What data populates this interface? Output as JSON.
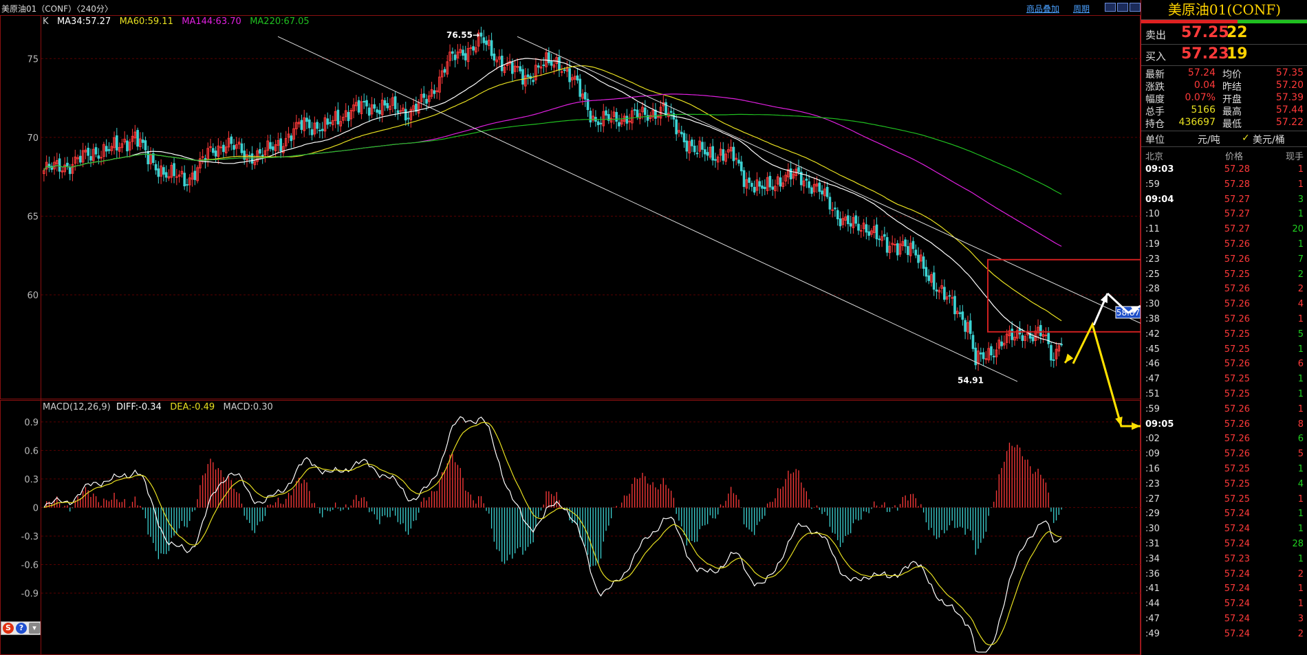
{
  "header": {
    "title": "美原油01（CONF）〈240分〉",
    "link_overlay": "商品叠加",
    "link_period": "周期"
  },
  "legend": {
    "k_label": "K",
    "ma34": "MA34:57.27",
    "ma60": "MA60:59.11",
    "ma144": "MA144:63.70",
    "ma220": "MA220:67.05"
  },
  "macd_legend": {
    "label": "MACD(12,26,9)",
    "diff": "DIFF:-0.34",
    "dea": "DEA:-0.49",
    "macd": "MACD:0.30"
  },
  "colors": {
    "up": "#ff3a3a",
    "down": "#3cd2d2",
    "ma34": "#ffffff",
    "ma60": "#e8e020",
    "ma144": "#e020e0",
    "ma220": "#20c020",
    "grid": "#5a0000",
    "diff": "#ffffff",
    "dea": "#e8e020"
  },
  "chart_data": [
    {
      "type": "candlestick",
      "title": "美原油01（CONF）〈240分〉",
      "y_ticks": [
        "75",
        "70",
        "65",
        "60"
      ],
      "ylim": [
        53.5,
        77.5
      ],
      "annotations": [
        {
          "text": "76.55",
          "value": 76.55
        },
        {
          "text": "54.91",
          "value": 54.91
        },
        {
          "text": "58.87",
          "value": 58.87
        }
      ],
      "current_box": "58.87",
      "series": [
        {
          "name": "MA34",
          "last": 57.27
        },
        {
          "name": "MA60",
          "last": 59.11
        },
        {
          "name": "MA144",
          "last": 63.7
        },
        {
          "name": "MA220",
          "last": 67.05
        }
      ],
      "anchors_close": [
        [
          0,
          67.9
        ],
        [
          10,
          68.3
        ],
        [
          20,
          69.1
        ],
        [
          28,
          69.3
        ],
        [
          35,
          70.2
        ],
        [
          40,
          68.6
        ],
        [
          48,
          67.6
        ],
        [
          55,
          67.3
        ],
        [
          63,
          68.9
        ],
        [
          70,
          69.7
        ],
        [
          78,
          68.8
        ],
        [
          85,
          69.0
        ],
        [
          92,
          69.8
        ],
        [
          100,
          70.9
        ],
        [
          108,
          70.6
        ],
        [
          118,
          71.8
        ],
        [
          130,
          72.0
        ],
        [
          140,
          71.6
        ],
        [
          148,
          72.5
        ],
        [
          155,
          74.8
        ],
        [
          162,
          75.5
        ],
        [
          168,
          76.2
        ],
        [
          172,
          75.4
        ],
        [
          178,
          74.5
        ],
        [
          185,
          73.8
        ],
        [
          192,
          74.6
        ],
        [
          198,
          74.8
        ],
        [
          205,
          73.2
        ],
        [
          212,
          71.0
        ],
        [
          220,
          71.2
        ],
        [
          230,
          71.4
        ],
        [
          238,
          71.8
        ],
        [
          245,
          70.2
        ],
        [
          250,
          69.1
        ],
        [
          257,
          69.0
        ],
        [
          265,
          68.8
        ],
        [
          270,
          67.3
        ],
        [
          275,
          66.6
        ],
        [
          282,
          67.3
        ],
        [
          290,
          67.6
        ],
        [
          298,
          66.6
        ],
        [
          305,
          65.1
        ],
        [
          312,
          64.2
        ],
        [
          318,
          64.3
        ],
        [
          324,
          62.9
        ],
        [
          330,
          63.4
        ],
        [
          335,
          62.4
        ],
        [
          340,
          61.3
        ],
        [
          345,
          60.0
        ],
        [
          350,
          59.3
        ],
        [
          355,
          58.1
        ],
        [
          358,
          55.7
        ],
        [
          365,
          56.6
        ],
        [
          372,
          57.3
        ],
        [
          376,
          57.7
        ],
        [
          380,
          57.3
        ],
        [
          384,
          57.5
        ],
        [
          388,
          56.1
        ],
        [
          391,
          57.3
        ]
      ]
    },
    {
      "type": "macd",
      "title": "MACD(12,26,9)",
      "y_ticks": [
        "0.9",
        "0.6",
        "0.3",
        "0",
        "-0.3",
        "-0.6",
        "-0.9"
      ],
      "ylim": [
        -1.55,
        1.0
      ],
      "series": [
        {
          "name": "DIFF",
          "last": -0.34
        },
        {
          "name": "DEA",
          "last": -0.49
        },
        {
          "name": "MACD",
          "last": 0.3
        }
      ]
    }
  ],
  "panel": {
    "title": "美原油01(CONF)",
    "sell_label": "卖出",
    "sell_price": "57.25",
    "sell_vol": "22",
    "buy_label": "买入",
    "buy_price": "57.23",
    "buy_vol": "19",
    "stats": [
      [
        "最新",
        "57.24",
        "均价",
        "57.35"
      ],
      [
        "涨跌",
        "0.04",
        "昨结",
        "57.20"
      ],
      [
        "幅度",
        "0.07%",
        "开盘",
        "57.39"
      ],
      [
        "总手",
        "5166",
        "最高",
        "57.44"
      ],
      [
        "持仓",
        "436697",
        "最低",
        "57.22"
      ]
    ],
    "unit_label": "单位",
    "unit_value": "元/吨",
    "unit_check": "✓",
    "unit_alt": "美元/桶",
    "col_time": "北京",
    "col_price": "价格",
    "col_vol": "现手",
    "ticks": [
      {
        "t": "09:03",
        "p": "57.28",
        "v": "1",
        "b": true,
        "c": "r"
      },
      {
        "t": ":59",
        "p": "57.28",
        "v": "1",
        "c": "r"
      },
      {
        "t": "09:04",
        "p": "57.27",
        "v": "3",
        "b": true,
        "c": "g"
      },
      {
        "t": ":10",
        "p": "57.27",
        "v": "1",
        "c": "g"
      },
      {
        "t": ":11",
        "p": "57.27",
        "v": "20",
        "c": "g"
      },
      {
        "t": ":19",
        "p": "57.26",
        "v": "1",
        "c": "g"
      },
      {
        "t": ":23",
        "p": "57.26",
        "v": "7",
        "c": "g"
      },
      {
        "t": ":25",
        "p": "57.25",
        "v": "2",
        "c": "g"
      },
      {
        "t": ":28",
        "p": "57.26",
        "v": "2",
        "c": "r"
      },
      {
        "t": ":30",
        "p": "57.26",
        "v": "4",
        "c": "r"
      },
      {
        "t": ":38",
        "p": "57.26",
        "v": "1",
        "c": "r"
      },
      {
        "t": ":42",
        "p": "57.25",
        "v": "5",
        "c": "g"
      },
      {
        "t": ":45",
        "p": "57.25",
        "v": "1",
        "c": "g"
      },
      {
        "t": ":46",
        "p": "57.26",
        "v": "6",
        "c": "r"
      },
      {
        "t": ":47",
        "p": "57.25",
        "v": "1",
        "c": "g"
      },
      {
        "t": ":51",
        "p": "57.25",
        "v": "1",
        "c": "g"
      },
      {
        "t": ":59",
        "p": "57.26",
        "v": "1",
        "c": "r"
      },
      {
        "t": "09:05",
        "p": "57.26",
        "v": "8",
        "b": true,
        "c": "r"
      },
      {
        "t": ":02",
        "p": "57.26",
        "v": "6",
        "c": "g"
      },
      {
        "t": ":09",
        "p": "57.26",
        "v": "5",
        "c": "r"
      },
      {
        "t": ":16",
        "p": "57.25",
        "v": "1",
        "c": "g"
      },
      {
        "t": ":23",
        "p": "57.25",
        "v": "4",
        "c": "g"
      },
      {
        "t": ":27",
        "p": "57.25",
        "v": "1",
        "c": "r"
      },
      {
        "t": ":29",
        "p": "57.24",
        "v": "1",
        "c": "g"
      },
      {
        "t": ":30",
        "p": "57.24",
        "v": "1",
        "c": "g"
      },
      {
        "t": ":31",
        "p": "57.24",
        "v": "28",
        "c": "g"
      },
      {
        "t": ":34",
        "p": "57.23",
        "v": "1",
        "c": "g"
      },
      {
        "t": ":36",
        "p": "57.24",
        "v": "2",
        "c": "r"
      },
      {
        "t": ":41",
        "p": "57.24",
        "v": "1",
        "c": "r"
      },
      {
        "t": ":44",
        "p": "57.24",
        "v": "1",
        "c": "r"
      },
      {
        "t": ":47",
        "p": "57.24",
        "v": "3",
        "c": "r"
      },
      {
        "t": ":49",
        "p": "57.24",
        "v": "2",
        "c": "r"
      }
    ]
  }
}
